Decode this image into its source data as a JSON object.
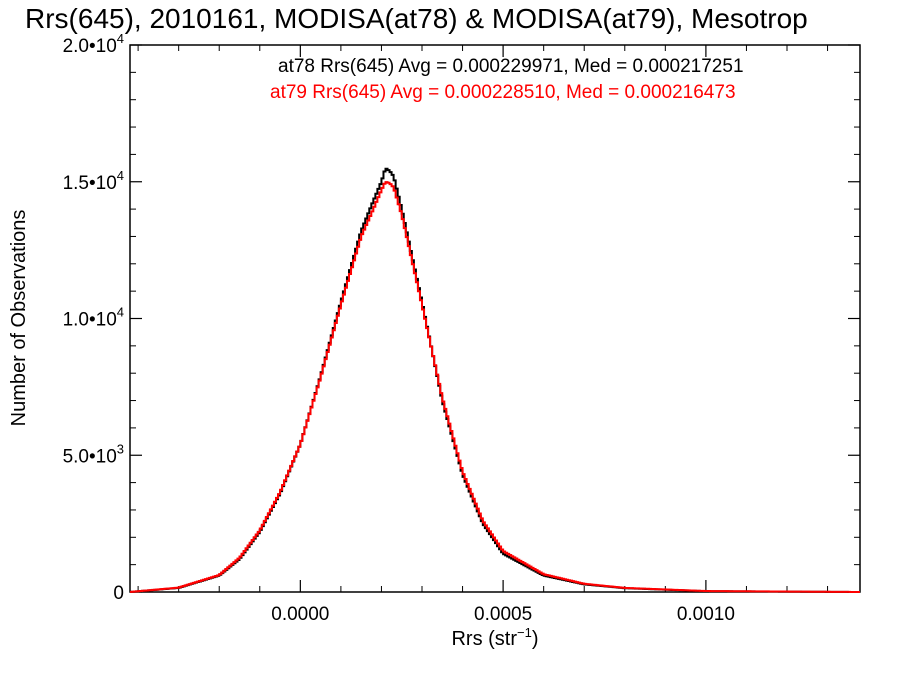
{
  "chart_data": {
    "type": "line",
    "title": "Rrs(645), 2010161, MODISA(at78) & MODISA(at79), Mesotrop",
    "xlabel": {
      "main": "Rrs (str",
      "sup": "−1",
      "tail": ")"
    },
    "ylabel": "Number of Observations",
    "xlim": [
      -0.00042,
      0.00138
    ],
    "ylim": [
      0,
      20000
    ],
    "x_ticks": [
      {
        "value": 0.0,
        "label": "0.0000"
      },
      {
        "value": 0.0005,
        "label": "0.0005"
      },
      {
        "value": 0.001,
        "label": "0.0010"
      }
    ],
    "y_ticks": [
      {
        "value": 0,
        "mant": "0",
        "exp": ""
      },
      {
        "value": 5000,
        "mant": "5.0•10",
        "exp": "3"
      },
      {
        "value": 10000,
        "mant": "1.0•10",
        "exp": "4"
      },
      {
        "value": 15000,
        "mant": "1.5•10",
        "exp": "4"
      },
      {
        "value": 20000,
        "mant": "2.0•10",
        "exp": "4"
      }
    ],
    "grid": false,
    "legend_position": "top-right",
    "series": [
      {
        "name": "at78",
        "color": "#000000",
        "legend_text": "at78 Rrs(645) Avg = 0.000229971, Med = 0.000217251",
        "x": [
          -0.00042,
          -0.0003,
          -0.0002,
          -0.00015,
          -0.0001,
          -5e-05,
          0.0,
          5e-05,
          0.0001,
          0.00015,
          0.00018,
          0.0002,
          0.00021,
          0.00022,
          0.00023,
          0.00025,
          0.0003,
          0.00035,
          0.0004,
          0.00045,
          0.0005,
          0.0006,
          0.0007,
          0.0008,
          0.001,
          0.00138
        ],
        "y": [
          0,
          150,
          600,
          1200,
          2200,
          3600,
          5400,
          7900,
          10600,
          13200,
          14300,
          15000,
          15500,
          15400,
          15200,
          14000,
          10600,
          7000,
          4300,
          2500,
          1400,
          600,
          280,
          140,
          30,
          0
        ]
      },
      {
        "name": "at79",
        "color": "#ff0000",
        "legend_text": "at79 Rrs(645) Avg = 0.000228510, Med = 0.000216473",
        "x": [
          -0.00042,
          -0.0003,
          -0.0002,
          -0.00015,
          -0.0001,
          -5e-05,
          0.0,
          5e-05,
          0.0001,
          0.00015,
          0.00018,
          0.0002,
          0.00021,
          0.00022,
          0.00023,
          0.00025,
          0.0003,
          0.00035,
          0.0004,
          0.00045,
          0.0005,
          0.0006,
          0.0007,
          0.0008,
          0.001,
          0.00138
        ],
        "y": [
          0,
          160,
          620,
          1250,
          2250,
          3650,
          5400,
          7850,
          10500,
          13000,
          14000,
          14700,
          15000,
          14950,
          14800,
          13800,
          10500,
          7100,
          4400,
          2600,
          1500,
          650,
          300,
          150,
          35,
          0
        ]
      }
    ]
  }
}
